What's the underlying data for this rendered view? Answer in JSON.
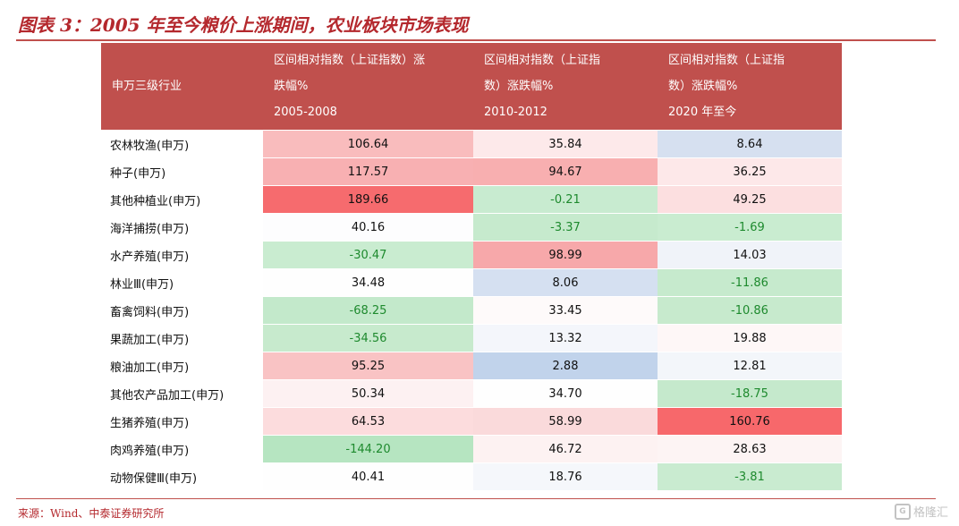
{
  "title": "图表 3：2005 年至今粮价上涨期间，农业板块市场表现",
  "table": {
    "headers": [
      {
        "lines": [
          "申万三级行业"
        ]
      },
      {
        "lines": [
          "区间相对指数（上证指数）涨",
          "跌幅%",
          "2005-2008"
        ]
      },
      {
        "lines": [
          "区间相对指数（上证指",
          "数）涨跌幅%",
          "2010-2012"
        ]
      },
      {
        "lines": [
          "区间相对指数（上证指",
          "数）涨跌幅%",
          "2020 年至今"
        ]
      }
    ],
    "rows": [
      {
        "name": "农林牧渔(申万)",
        "values": [
          "106.64",
          "35.84",
          "8.64"
        ]
      },
      {
        "name": "种子(申万)",
        "values": [
          "117.57",
          "94.67",
          "36.25"
        ]
      },
      {
        "name": "其他种植业(申万)",
        "values": [
          "189.66",
          "-0.21",
          "49.25"
        ]
      },
      {
        "name": "海洋捕捞(申万)",
        "values": [
          "40.16",
          "-3.37",
          "-1.69"
        ]
      },
      {
        "name": "水产养殖(申万)",
        "values": [
          "-30.47",
          "98.99",
          "14.03"
        ]
      },
      {
        "name": "林业Ⅲ(申万)",
        "values": [
          "34.48",
          "8.06",
          "-11.86"
        ]
      },
      {
        "name": "畜禽饲料(申万)",
        "values": [
          "-68.25",
          "33.45",
          "-10.86"
        ]
      },
      {
        "name": "果蔬加工(申万)",
        "values": [
          "-34.56",
          "13.32",
          "19.88"
        ]
      },
      {
        "name": "粮油加工(申万)",
        "values": [
          "95.25",
          "2.88",
          "12.81"
        ]
      },
      {
        "name": "其他农产品加工(申万)",
        "values": [
          "50.34",
          "34.70",
          "-18.75"
        ]
      },
      {
        "name": "生猪养殖(申万)",
        "values": [
          "64.53",
          "58.99",
          "160.76"
        ]
      },
      {
        "name": "肉鸡养殖(申万)",
        "values": [
          "-144.20",
          "46.72",
          "28.63"
        ]
      },
      {
        "name": "动物保健Ⅲ(申万)",
        "values": [
          "40.41",
          "18.76",
          "-3.81"
        ]
      }
    ],
    "cell_colors": [
      [
        "#f9bcbd",
        "#fde9ea",
        "#d6e0f0"
      ],
      [
        "#f8b0b2",
        "#f8afb0",
        "#fde8e9"
      ],
      [
        "#f66b6e",
        "#c8ebd0",
        "#fcdfe0"
      ],
      [
        "#fdfdfe",
        "#c6eacd",
        "#c9ecd0"
      ],
      [
        "#c9ecd0",
        "#f7a8aa",
        "#f0f3f9"
      ],
      [
        "#fefefe",
        "#d5e0f1",
        "#c6eacd"
      ],
      [
        "#c3e9cb",
        "#fefafa",
        "#c7eacd"
      ],
      [
        "#c7eacd",
        "#f4f6fb",
        "#fef7f7"
      ],
      [
        "#f9c3c4",
        "#c1d3eb",
        "#f3f6fa"
      ],
      [
        "#fdf1f2",
        "#fefefe",
        "#c5e9cc"
      ],
      [
        "#fcdcdd",
        "#fadadb",
        "#f7686b"
      ],
      [
        "#b6e5c1",
        "#fdf2f2",
        "#fdf4f4"
      ],
      [
        "#fefefe",
        "#f5f7fb",
        "#c9ebd0"
      ]
    ],
    "negative_text_color": "#1e8a2e",
    "header_bg": "#c0504d"
  },
  "source": "来源：Wind、中泰证券研究所",
  "watermark": {
    "icon": "gelonghui-logo-icon",
    "text": "格隆汇"
  }
}
